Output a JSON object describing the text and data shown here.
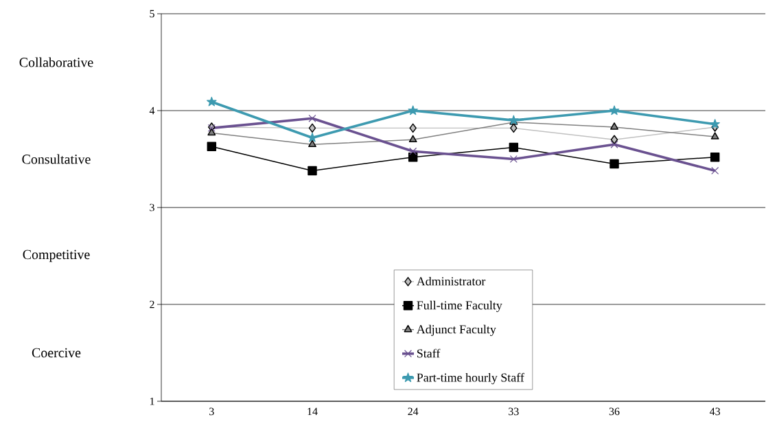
{
  "chart_data": {
    "type": "line",
    "categories": [
      "3",
      "14",
      "24",
      "33",
      "36",
      "43"
    ],
    "series": [
      {
        "name": "Administrator",
        "color": "#c0c0c0",
        "marker": "diamond",
        "values": [
          3.83,
          3.82,
          3.82,
          3.82,
          3.7,
          3.83
        ]
      },
      {
        "name": "Full-time Faculty",
        "color": "#000000",
        "marker": "square",
        "values": [
          3.63,
          3.38,
          3.52,
          3.62,
          3.45,
          3.52
        ]
      },
      {
        "name": "Adjunct Faculty",
        "color": "#808080",
        "marker": "triangle",
        "values": [
          3.77,
          3.65,
          3.7,
          3.88,
          3.83,
          3.73
        ]
      },
      {
        "name": "Staff",
        "color": "#6a5190",
        "marker": "cross",
        "values": [
          3.82,
          3.92,
          3.58,
          3.5,
          3.65,
          3.38
        ]
      },
      {
        "name": "Part-time hourly Staff",
        "color": "#3d9ab0",
        "marker": "star",
        "values": [
          4.09,
          3.72,
          4.0,
          3.9,
          4.0,
          3.86
        ]
      }
    ],
    "ylim": [
      1,
      5
    ],
    "yticks": [
      1,
      2,
      3,
      4,
      5
    ],
    "annotations": [
      "Collaborative",
      "Consultative",
      "Competitive",
      "Coercive"
    ],
    "grid": "y",
    "legend": "bottom",
    "line_style": "solid"
  }
}
